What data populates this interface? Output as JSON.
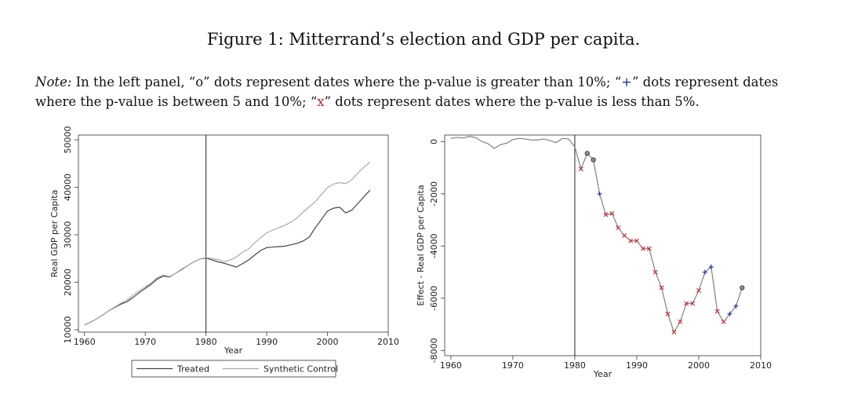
{
  "figure_title": "Figure 1: Mitterrand’s election and GDP per capita.",
  "note": {
    "label": "Note:",
    "t1": " In the left panel, “o” dots represent dates where the p-value is greater than 10%; “",
    "plus": "+",
    "t2": "” dots represent dates where the p-value is between 5 and 10%; “",
    "x": "x",
    "t3": "” dots represent dates where the p-value is less than 5%."
  },
  "colors": {
    "red": "#d0202a",
    "blue": "#1a2fb0",
    "treated": "#444444",
    "synthetic": "#aaaaaa"
  },
  "chart_data": [
    {
      "type": "line",
      "xlabel": "Year",
      "ylabel": "Real GDP per Capita",
      "xlim": [
        1959,
        2010
      ],
      "ylim": [
        9500,
        51000
      ],
      "xticks": [
        1960,
        1970,
        1980,
        1990,
        2000,
        2010
      ],
      "yticks": [
        10000,
        20000,
        30000,
        40000,
        50000
      ],
      "vline": 1980,
      "legend": [
        "Treated",
        "Synthetic Control"
      ],
      "x": [
        1960,
        1961,
        1962,
        1963,
        1964,
        1965,
        1966,
        1967,
        1968,
        1969,
        1970,
        1971,
        1972,
        1973,
        1974,
        1975,
        1976,
        1977,
        1978,
        1979,
        1980,
        1981,
        1982,
        1983,
        1984,
        1985,
        1986,
        1987,
        1988,
        1989,
        1990,
        1991,
        1992,
        1993,
        1994,
        1995,
        1996,
        1997,
        1998,
        1999,
        2000,
        2001,
        2002,
        2003,
        2004,
        2005,
        2006,
        2007
      ],
      "series": [
        {
          "name": "Treated",
          "values": [
            11000,
            11600,
            12300,
            13100,
            14000,
            14700,
            15400,
            15900,
            16800,
            17800,
            18700,
            19600,
            20700,
            21300,
            21100,
            21900,
            22700,
            23500,
            24300,
            24900,
            25100,
            24700,
            24300,
            24000,
            23600,
            23200,
            23900,
            24700,
            25700,
            26700,
            27300,
            27400,
            27500,
            27600,
            27900,
            28200,
            28700,
            29500,
            31500,
            33200,
            35000,
            35600,
            35800,
            34600,
            35200,
            36600,
            38000,
            39400
          ]
        },
        {
          "name": "Synthetic Control",
          "values": [
            11000,
            11600,
            12300,
            13100,
            14000,
            14800,
            15600,
            16300,
            17300,
            18200,
            19000,
            19900,
            21000,
            21500,
            21200,
            21900,
            22800,
            23500,
            24300,
            24900,
            25200,
            25000,
            24800,
            24300,
            24700,
            25300,
            26300,
            27000,
            28300,
            29400,
            30400,
            31000,
            31500,
            32000,
            32700,
            33500,
            34800,
            35900,
            37000,
            38500,
            39900,
            40700,
            41000,
            40800,
            41600,
            43000,
            44200,
            45300
          ]
        }
      ]
    },
    {
      "type": "scatter",
      "xlabel": "Year",
      "ylabel": "Effect - Real GDP per Capita",
      "xlim": [
        1959,
        2010
      ],
      "ylim": [
        -8200,
        250
      ],
      "xticks": [
        1960,
        1970,
        1980,
        1990,
        2000,
        2010
      ],
      "yticks": [
        0,
        -2000,
        -4000,
        -6000,
        -8000
      ],
      "vline": 1980,
      "x": [
        1960,
        1961,
        1962,
        1963,
        1964,
        1965,
        1966,
        1967,
        1968,
        1969,
        1970,
        1971,
        1972,
        1973,
        1974,
        1975,
        1976,
        1977,
        1978,
        1979,
        1980,
        1981,
        1982,
        1983,
        1984,
        1985,
        1986,
        1987,
        1988,
        1989,
        1990,
        1991,
        1992,
        1993,
        1994,
        1995,
        1996,
        1997,
        1998,
        1999,
        2000,
        2001,
        2002,
        2003,
        2004,
        2005,
        2006,
        2007
      ],
      "values": [
        120,
        160,
        140,
        200,
        150,
        0,
        -80,
        -260,
        -120,
        -60,
        80,
        120,
        100,
        60,
        60,
        100,
        40,
        -40,
        120,
        100,
        -200,
        -1050,
        -450,
        -700,
        -2000,
        -2800,
        -2750,
        -3300,
        -3600,
        -3800,
        -3800,
        -4100,
        -4100,
        -5000,
        -5600,
        -6600,
        -7300,
        -6900,
        -6200,
        -6200,
        -5700,
        -5000,
        -4800,
        -6500,
        -6900,
        -6600,
        -6300,
        -5600
      ],
      "markers": [
        "",
        "",
        "",
        "",
        "",
        "",
        "",
        "",
        "",
        "",
        "",
        "",
        "",
        "",
        "",
        "",
        "",
        "",
        "",
        "",
        "",
        "x",
        "o",
        "o",
        "+",
        "x",
        "x",
        "x",
        "x",
        "x",
        "x",
        "x",
        "x",
        "x",
        "x",
        "x",
        "x",
        "x",
        "x",
        "x",
        "x",
        "+",
        "+",
        "x",
        "x",
        "+",
        "+",
        "o"
      ]
    }
  ]
}
